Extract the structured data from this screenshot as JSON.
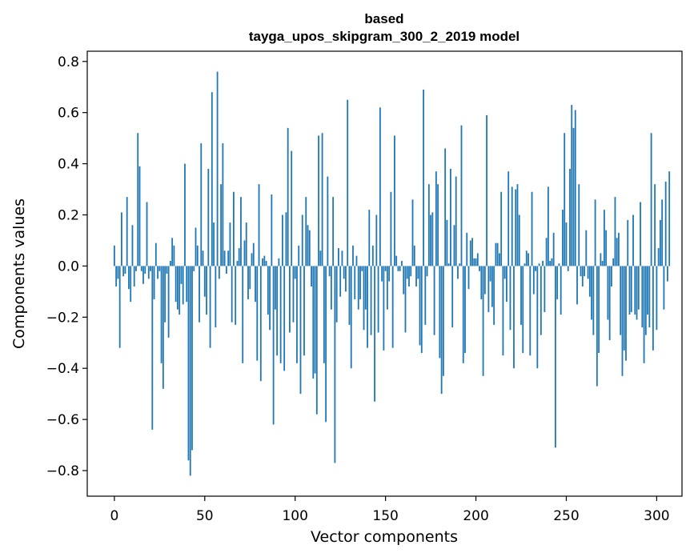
{
  "chart_data": {
    "type": "bar",
    "title": "based\ntayga_upos_skipgram_300_2_2019 model",
    "title_lines": [
      "based",
      "tayga_upos_skipgram_300_2_2019 model"
    ],
    "xlabel": "Vector components",
    "ylabel": "Components values",
    "xlim": [
      -15,
      314
    ],
    "ylim": [
      -0.9,
      0.84
    ],
    "xticks": [
      0,
      50,
      100,
      150,
      200,
      250,
      300
    ],
    "yticks": [
      -0.8,
      -0.6,
      -0.4,
      -0.2,
      0.0,
      0.2,
      0.4,
      0.6,
      0.8
    ],
    "xtick_labels": [
      "0",
      "50",
      "100",
      "150",
      "200",
      "250",
      "300"
    ],
    "ytick_labels": [
      "−0.8",
      "−0.6",
      "−0.4",
      "−0.2",
      "0.0",
      "0.2",
      "0.4",
      "0.6",
      "0.8"
    ],
    "grid": false,
    "legend": "none",
    "bar_color": "#1f77b4",
    "values": [
      0.08,
      -0.08,
      -0.05,
      -0.32,
      0.21,
      -0.04,
      -0.03,
      0.27,
      -0.09,
      -0.14,
      0.16,
      -0.08,
      -0.02,
      0.52,
      0.39,
      -0.02,
      -0.07,
      -0.03,
      0.25,
      -0.05,
      -0.02,
      -0.64,
      -0.13,
      0.09,
      -0.05,
      -0.02,
      -0.38,
      -0.48,
      -0.22,
      -0.03,
      -0.28,
      0.02,
      0.11,
      0.08,
      -0.14,
      -0.17,
      -0.19,
      -0.07,
      -0.15,
      0.4,
      -0.14,
      -0.76,
      -0.82,
      -0.72,
      -0.02,
      0.15,
      0.08,
      -0.22,
      0.48,
      0.06,
      -0.12,
      -0.19,
      0.38,
      -0.32,
      0.68,
      0.17,
      -0.24,
      0.76,
      -0.05,
      0.32,
      0.48,
      0.06,
      -0.03,
      0.06,
      0.17,
      -0.22,
      0.29,
      -0.23,
      0.02,
      0.07,
      0.27,
      -0.38,
      0.1,
      0.17,
      -0.13,
      -0.09,
      0.05,
      0.09,
      -0.14,
      -0.37,
      0.32,
      -0.45,
      0.03,
      0.04,
      0.02,
      -0.19,
      -0.25,
      0.28,
      -0.62,
      -0.17,
      -0.35,
      0.03,
      -0.38,
      0.2,
      -0.41,
      0.21,
      0.54,
      -0.26,
      0.45,
      -0.22,
      -0.05,
      -0.38,
      0.08,
      -0.5,
      0.2,
      -0.35,
      0.27,
      0.16,
      0.14,
      -0.08,
      -0.44,
      -0.42,
      -0.58,
      0.51,
      0.06,
      0.52,
      -0.38,
      -0.61,
      0.35,
      -0.04,
      -0.17,
      0.27,
      -0.77,
      -0.22,
      0.07,
      -0.12,
      0.06,
      -0.05,
      -0.1,
      0.65,
      -0.23,
      -0.4,
      0.08,
      -0.13,
      0.04,
      -0.17,
      -0.13,
      -0.02,
      -0.25,
      -0.17,
      -0.32,
      0.22,
      -0.27,
      0.08,
      -0.53,
      0.2,
      -0.26,
      0.62,
      -0.06,
      -0.33,
      -0.02,
      -0.17,
      -0.06,
      0.29,
      -0.32,
      0.51,
      0.04,
      -0.02,
      -0.02,
      0.02,
      -0.11,
      -0.26,
      -0.05,
      -0.08,
      -0.04,
      0.26,
      0.08,
      -0.08,
      -0.05,
      -0.31,
      -0.34,
      0.69,
      -0.23,
      -0.04,
      0.32,
      0.2,
      0.21,
      -0.27,
      0.37,
      0.32,
      -0.36,
      -0.5,
      -0.43,
      0.46,
      0.18,
      0.01,
      0.38,
      -0.24,
      0.16,
      0.35,
      -0.05,
      0.01,
      0.55,
      -0.38,
      -0.34,
      0.13,
      -0.09,
      0.1,
      0.11,
      0.03,
      0.03,
      0.05,
      -0.02,
      -0.13,
      -0.43,
      -0.11,
      0.59,
      -0.18,
      -0.06,
      -0.16,
      -0.23,
      0.09,
      0.09,
      0.05,
      0.29,
      -0.35,
      -0.05,
      -0.14,
      0.37,
      -0.25,
      0.31,
      -0.4,
      0.3,
      0.32,
      0.2,
      -0.23,
      -0.34,
      0.01,
      0.06,
      0.05,
      -0.35,
      0.29,
      -0.11,
      -0.02,
      -0.4,
      0.01,
      -0.27,
      0.02,
      -0.18,
      0.11,
      0.31,
      0.02,
      0.03,
      0.13,
      -0.71,
      -0.13,
      0.01,
      -0.19,
      0.22,
      0.52,
      0.17,
      -0.02,
      0.38,
      0.63,
      0.54,
      0.61,
      -0.15,
      0.32,
      -0.04,
      -0.08,
      -0.04,
      0.14,
      -0.05,
      -0.12,
      -0.21,
      -0.27,
      0.26,
      -0.47,
      -0.34,
      0.05,
      0.02,
      0.22,
      0.14,
      -0.21,
      -0.29,
      -0.08,
      0.03,
      0.27,
      0.11,
      0.13,
      -0.27,
      -0.43,
      -0.33,
      -0.37,
      0.18,
      -0.19,
      -0.18,
      0.2,
      -0.19,
      -0.21,
      -0.17,
      0.25,
      -0.24,
      -0.38,
      -0.27,
      -0.19,
      -0.24,
      0.52,
      -0.33,
      0.32,
      -0.25,
      0.07,
      0.18,
      0.26,
      -0.17,
      0.33,
      -0.06,
      0.37
    ]
  }
}
